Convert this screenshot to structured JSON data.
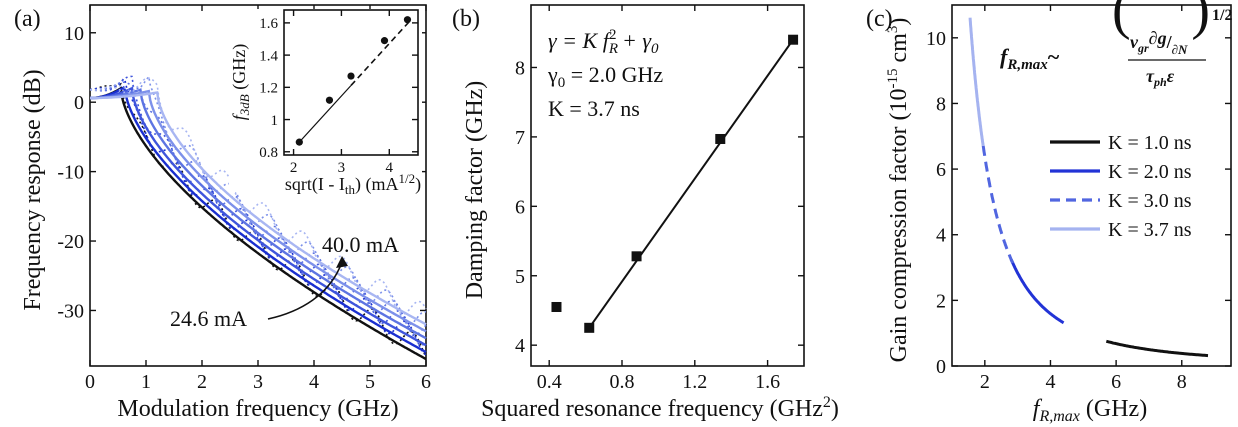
{
  "chart_data": [
    {
      "panel": "(a)",
      "type": "line",
      "xlabel": "Modulation frequency (GHz)",
      "ylabel": "Frequency response (dB)",
      "xlim": [
        0,
        6
      ],
      "ylim": [
        -38,
        14
      ],
      "xticks": [
        0,
        1,
        2,
        3,
        4,
        5,
        6
      ],
      "yticks": [
        10,
        0,
        -10,
        -20,
        -30
      ],
      "colors": [
        "#111111",
        "#1a2fd0",
        "#3f55dc",
        "#5d74e2",
        "#7d91ea",
        "#a8b6f2"
      ],
      "series": [
        {
          "current": 24.6,
          "color": "#111111",
          "peakF": 0.55,
          "peakG": 2.0,
          "endG": -37
        },
        {
          "color": "#1a2fd0",
          "peakF": 0.62,
          "peakG": 2.2,
          "endG": -36
        },
        {
          "color": "#3f55dc",
          "peakF": 0.75,
          "peakG": 2.0,
          "endG": -35
        },
        {
          "color": "#5d74e2",
          "peakF": 0.9,
          "peakG": 1.8,
          "endG": -34
        },
        {
          "color": "#7d91ea",
          "peakF": 1.05,
          "peakG": 1.6,
          "endG": -33
        },
        {
          "current": 40.0,
          "color": "#a8b6f2",
          "peakF": 1.2,
          "peakG": 1.4,
          "endG": -32
        }
      ],
      "annotations": {
        "low": "24.6 mA",
        "high": "40.0 mA"
      },
      "inset": {
        "xlabel": "sqrt(I - I",
        "xlabel_sub": "th",
        "xlabel_end": ") (mA",
        "xlabel_sup": "1/2",
        "xlabel_close": ")",
        "ylabel": "f",
        "ylabel_sub": "3dB",
        "ylabel_end": " (GHz)",
        "xlim": [
          1.8,
          4.6
        ],
        "ylim": [
          0.78,
          1.68
        ],
        "xticks": [
          2,
          3,
          4
        ],
        "yticks": [
          0.8,
          1.0,
          1.2,
          1.4,
          1.6
        ],
        "points": [
          [
            2.12,
            0.86
          ],
          [
            2.75,
            1.12
          ],
          [
            3.2,
            1.27
          ],
          [
            3.9,
            1.49
          ],
          [
            4.38,
            1.62
          ]
        ],
        "fit": {
          "x1": 2.12,
          "y1": 0.86,
          "x2": 4.4,
          "slope": 0.3255,
          "solid_until": 3.2
        }
      }
    },
    {
      "panel": "(b)",
      "type": "scatter",
      "xlabel": "Squared resonance frequency (GHz",
      "xlabel_sup": "2",
      "xlabel_close": ")",
      "ylabel": "Damping factor (GHz)",
      "xlim": [
        0.3,
        1.8
      ],
      "ylim": [
        3.7,
        8.9
      ],
      "xticks": [
        "0.4",
        "0.8",
        "1.2",
        "1.6"
      ],
      "yticks": [
        4,
        5,
        6,
        7,
        8
      ],
      "points": [
        [
          0.44,
          4.55
        ],
        [
          0.62,
          4.25
        ],
        [
          0.88,
          5.28
        ],
        [
          1.34,
          6.97
        ],
        [
          1.74,
          8.4
        ]
      ],
      "fit": {
        "x1": 0.62,
        "y1": 4.25,
        "x2": 1.74,
        "y2": 8.4
      },
      "equation": {
        "lhs": "γ = K f",
        "sub": "R",
        "sup": "2",
        "rhs": " + γ",
        "rhs_sub": "0"
      },
      "gamma0": {
        "text": "γ",
        "sub": "0",
        "end": " = 2.0 GHz"
      },
      "k": "K = 3.7 ns"
    },
    {
      "panel": "(c)",
      "type": "line",
      "xlabel": "f",
      "xlabel_sub": "R,max",
      "xlabel_end": " (GHz)",
      "ylabel": "Gain compression factor (10",
      "ylabel_sup": "-15",
      "ylabel_end": " cm",
      "ylabel_sup2": "3",
      "ylabel_close": ")",
      "xlim": [
        1,
        9.5
      ],
      "ylim": [
        0,
        11
      ],
      "xticks": [
        2,
        4,
        6,
        8
      ],
      "yticks": [
        0,
        2,
        4,
        6,
        8,
        10
      ],
      "formula": {
        "lhs": "f",
        "lhs_sub": "R,max",
        "tilde": "~",
        "num": "v",
        "num_sub": "gr",
        "num_mid": "∂g",
        "num_den": "∂N",
        "den": "τ",
        "den_sub": "ph",
        "den_end": "ε",
        "power": "1/2"
      },
      "series": [
        {
          "name": "K = 1.0 ns",
          "K": 1.0,
          "color": "#111111",
          "dash": "",
          "x_range": [
            5.7,
            8.8
          ]
        },
        {
          "name": "K = 2.0 ns",
          "K": 2.0,
          "color": "#2233d6",
          "dash": "",
          "x_range": [
            2.8,
            4.4
          ]
        },
        {
          "name": "K = 3.0 ns",
          "K": 3.0,
          "color": "#5166e0",
          "dash": "10 6",
          "x_range": [
            1.95,
            2.85
          ]
        },
        {
          "name": "K = 3.7 ns",
          "K": 3.7,
          "color": "#a5b3f0",
          "dash": "",
          "x_range": [
            1.55,
            1.95
          ]
        }
      ],
      "legend_position": "right"
    }
  ]
}
